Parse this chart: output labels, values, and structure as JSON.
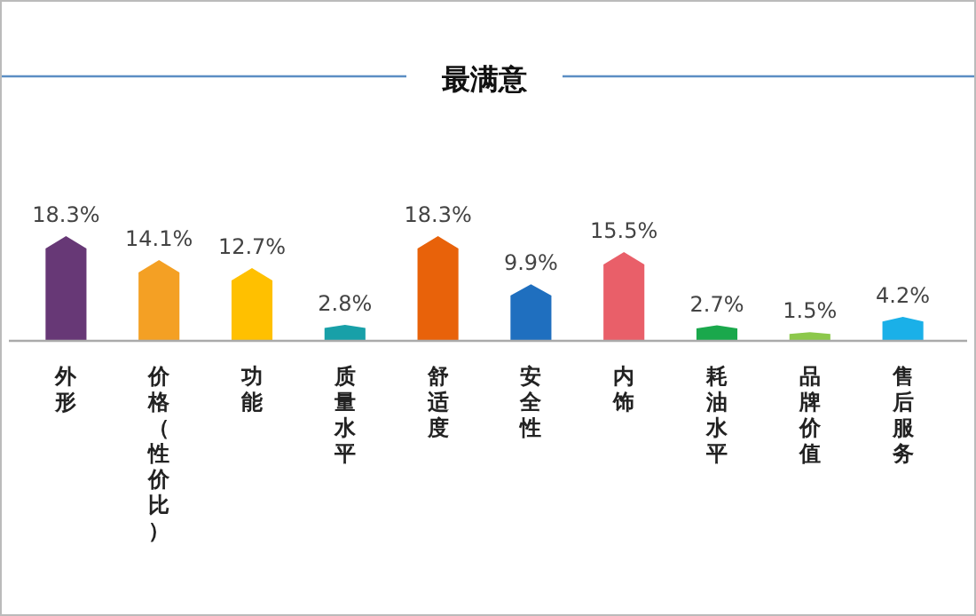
{
  "chart_data": {
    "type": "bar",
    "title": "最满意",
    "categories": [
      "外形",
      "价格（性价比）",
      "功能",
      "质量水平",
      "舒适度",
      "安全性",
      "内饰",
      "耗油水平",
      "品牌价值",
      "售后服务"
    ],
    "values": [
      18.3,
      14.1,
      12.7,
      2.8,
      18.3,
      9.9,
      15.5,
      2.7,
      1.5,
      4.2
    ],
    "colors": [
      "#673876",
      "#f4a024",
      "#ffc000",
      "#18a0a8",
      "#e8620a",
      "#1f6fbf",
      "#e95f69",
      "#1aa84c",
      "#8cc84b",
      "#1ab0e8"
    ],
    "value_labels": [
      "18.3%",
      "14.1%",
      "12.7%",
      "2.8%",
      "18.3%",
      "9.9%",
      "15.5%",
      "2.7%",
      "1.5%",
      "4.2%"
    ],
    "data_labels": false
  }
}
